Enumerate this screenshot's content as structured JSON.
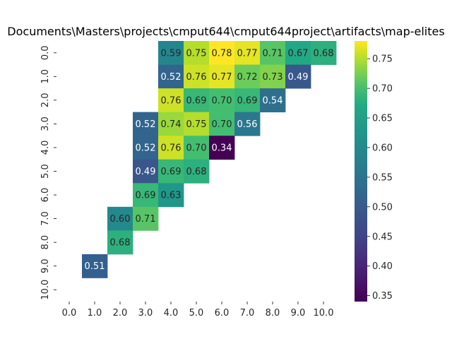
{
  "chart_data": {
    "type": "heatmap",
    "title": "Documents\\Masters\\projects\\cmput644\\cmput644project\\artifacts\\map-elites",
    "x_ticks": [
      "0.0",
      "1.0",
      "2.0",
      "3.0",
      "4.0",
      "5.0",
      "6.0",
      "7.0",
      "8.0",
      "9.0",
      "10.0"
    ],
    "y_ticks": [
      "0.0",
      "1.0",
      "2.0",
      "3.0",
      "4.0",
      "5.0",
      "6.0",
      "7.0",
      "8.0",
      "9.0",
      "10.0"
    ],
    "values": [
      [
        null,
        null,
        null,
        null,
        0.59,
        0.75,
        0.78,
        0.77,
        0.71,
        0.67,
        0.68
      ],
      [
        null,
        null,
        null,
        null,
        0.52,
        0.76,
        0.77,
        0.72,
        0.73,
        0.49,
        null
      ],
      [
        null,
        null,
        null,
        null,
        0.76,
        0.69,
        0.7,
        0.69,
        0.54,
        null,
        null
      ],
      [
        null,
        null,
        null,
        0.52,
        0.74,
        0.75,
        0.7,
        0.56,
        null,
        null,
        null
      ],
      [
        null,
        null,
        null,
        0.52,
        0.76,
        0.7,
        0.34,
        null,
        null,
        null,
        null
      ],
      [
        null,
        null,
        null,
        0.49,
        0.69,
        0.68,
        null,
        null,
        null,
        null,
        null
      ],
      [
        null,
        null,
        null,
        0.69,
        0.63,
        null,
        null,
        null,
        null,
        null,
        null
      ],
      [
        null,
        null,
        0.6,
        0.71,
        null,
        null,
        null,
        null,
        null,
        null,
        null
      ],
      [
        null,
        null,
        0.68,
        null,
        null,
        null,
        null,
        null,
        null,
        null,
        null
      ],
      [
        null,
        0.51,
        null,
        null,
        null,
        null,
        null,
        null,
        null,
        null,
        null
      ],
      [
        null,
        null,
        null,
        null,
        null,
        null,
        null,
        null,
        null,
        null,
        null
      ]
    ],
    "value_format": "2 decimals",
    "colormap": "viridis",
    "vmin": 0.34,
    "vmax": 0.78,
    "colorbar_ticks": [
      "0.35",
      "0.40",
      "0.45",
      "0.50",
      "0.55",
      "0.60",
      "0.65",
      "0.70",
      "0.75"
    ],
    "colorbar_tick_values": [
      0.35,
      0.4,
      0.45,
      0.5,
      0.55,
      0.6,
      0.65,
      0.7,
      0.75
    ],
    "grid": false
  }
}
